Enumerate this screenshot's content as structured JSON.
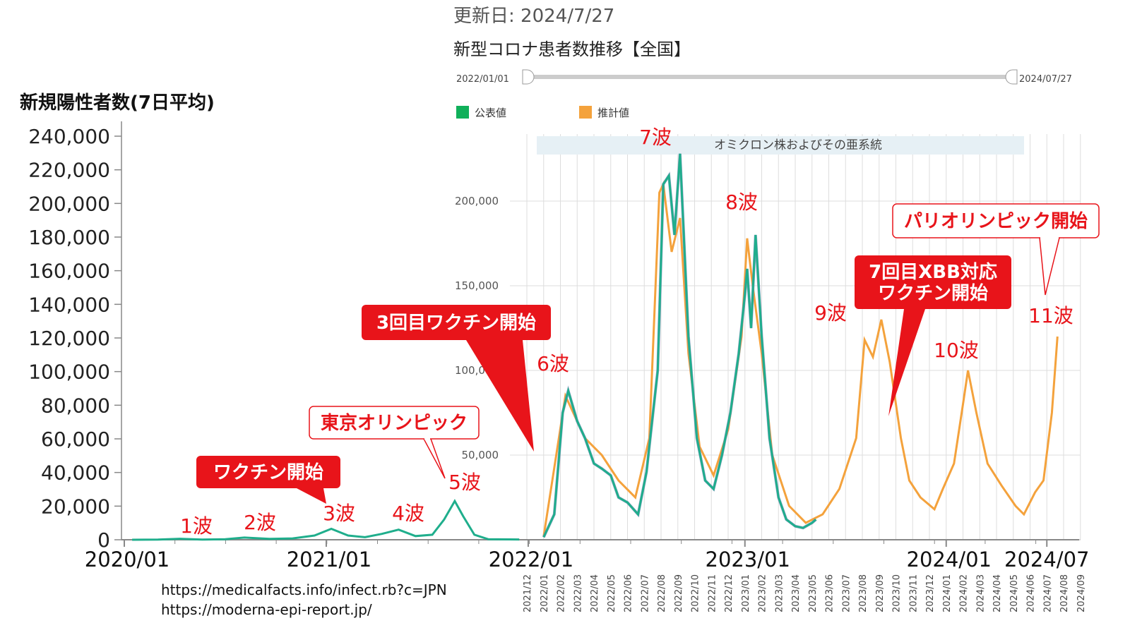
{
  "header": {
    "updated": "更新日: 2024/7/27",
    "title": "新型コロナ患者数推移【全国】"
  },
  "slider": {
    "start_label": "2022/01/01",
    "end_label": "2024/07/27"
  },
  "legend": [
    {
      "label": "公表値",
      "color": "#10b05a"
    },
    {
      "label": "推計値",
      "color": "#f4a23c"
    }
  ],
  "omicron_label": "オミクロン株およびその亜系統",
  "sources": [
    "https://medicalfacts.info/infect.rb?c=JPN",
    "https://moderna-epi-report.jp/"
  ],
  "waves": [
    {
      "label": "1波",
      "date": "2020-04"
    },
    {
      "label": "2波",
      "date": "2020-08"
    },
    {
      "label": "3波",
      "date": "2021-01"
    },
    {
      "label": "4波",
      "date": "2021-05"
    },
    {
      "label": "5波",
      "date": "2021-08"
    },
    {
      "label": "6波",
      "date": "2022-02"
    },
    {
      "label": "7波",
      "date": "2022-08"
    },
    {
      "label": "8波",
      "date": "2023-01"
    },
    {
      "label": "9波",
      "date": "2023-09"
    },
    {
      "label": "10波",
      "date": "2024-02"
    },
    {
      "label": "11波",
      "date": "2024-07"
    }
  ],
  "callouts": [
    {
      "label": "ワクチン開始",
      "style": "filled"
    },
    {
      "label": "東京オリンピック",
      "style": "outline"
    },
    {
      "label": "3回目ワクチン開始",
      "style": "filled"
    },
    {
      "label": "7回目XBB対応\nワクチン開始",
      "style": "filled"
    },
    {
      "label": "パリオリンピック開始",
      "style": "outline"
    }
  ],
  "colors": {
    "teal": "#1fae8c",
    "orange": "#f4a23c",
    "red": "#e8141a",
    "axis": "#888888",
    "grid": "#dddddd",
    "omicron_band": "#e6f0f5"
  },
  "chart_data": [
    {
      "type": "line",
      "title": "新規陽性者数(7日平均)",
      "xlabel": "",
      "ylabel": "新規陽性者数(7日平均)",
      "ylim": [
        0,
        240000
      ],
      "y_ticks": [
        "0",
        "20,000",
        "40,000",
        "60,000",
        "80,000",
        "100,000",
        "120,000",
        "140,000",
        "160,000",
        "180,000",
        "200,000",
        "220,000",
        "240,000"
      ],
      "x_ticks": [
        "2020/01",
        "2021/01",
        "2022/01",
        "2023/01",
        "2024/01",
        "2024/07"
      ],
      "series": [
        {
          "name": "",
          "x": [
            "2020-01-15",
            "2020-03-01",
            "2020-04-10",
            "2020-05-20",
            "2020-07-01",
            "2020-08-05",
            "2020-09-20",
            "2020-11-01",
            "2020-12-10",
            "2021-01-10",
            "2021-02-10",
            "2021-03-10",
            "2021-04-10",
            "2021-05-10",
            "2021-06-10",
            "2021-07-10",
            "2021-08-01",
            "2021-08-20",
            "2021-09-05",
            "2021-09-25",
            "2021-10-20",
            "2021-12-15"
          ],
          "values": [
            0,
            100,
            600,
            100,
            300,
            1300,
            500,
            800,
            2500,
            6500,
            2500,
            1500,
            3500,
            6000,
            2200,
            3000,
            12000,
            23000,
            14000,
            3000,
            300,
            150
          ]
        }
      ]
    },
    {
      "type": "line",
      "title": "",
      "ylim": [
        0,
        230000
      ],
      "y_ticks": [
        "50,000",
        "100,000",
        "150,000",
        "200,000"
      ],
      "x_ticks": [
        "2021/12",
        "2022/01",
        "2022/02",
        "2022/03",
        "2022/04",
        "2022/05",
        "2022/06",
        "2022/07",
        "2022/08",
        "2022/09",
        "2022/10",
        "2022/11",
        "2022/12",
        "2023/01",
        "2023/02",
        "2023/03",
        "2023/04",
        "2023/05",
        "2023/06",
        "2023/07",
        "2023/08",
        "2023/09",
        "2023/10",
        "2023/11",
        "2023/12",
        "2024/01",
        "2024/02",
        "2024/03",
        "2024/04",
        "2024/05",
        "2024/06",
        "2024/07",
        "2024/08",
        "2024/09"
      ],
      "series": [
        {
          "name": "公表値",
          "x": [
            "2022-01-01",
            "2022-01-20",
            "2022-02-05",
            "2022-02-15",
            "2022-03-01",
            "2022-03-15",
            "2022-04-01",
            "2022-04-15",
            "2022-05-01",
            "2022-05-15",
            "2022-06-01",
            "2022-06-20",
            "2022-07-05",
            "2022-07-25",
            "2022-08-05",
            "2022-08-15",
            "2022-08-25",
            "2022-09-05",
            "2022-09-20",
            "2022-10-05",
            "2022-10-20",
            "2022-11-05",
            "2022-11-20",
            "2022-12-05",
            "2022-12-20",
            "2023-01-01",
            "2023-01-05",
            "2023-01-12",
            "2023-01-20",
            "2023-02-01",
            "2023-02-15",
            "2023-03-01",
            "2023-03-15",
            "2023-04-01",
            "2023-04-15",
            "2023-05-01",
            "2023-05-08"
          ],
          "values": [
            1500,
            15000,
            75000,
            88000,
            70000,
            60000,
            45000,
            42000,
            38000,
            25000,
            22000,
            15000,
            40000,
            100000,
            210000,
            215000,
            180000,
            228000,
            120000,
            60000,
            35000,
            30000,
            50000,
            75000,
            110000,
            145000,
            160000,
            125000,
            180000,
            120000,
            60000,
            25000,
            12000,
            8000,
            7000,
            10000,
            12000
          ]
        },
        {
          "name": "推計値",
          "x": [
            "2022-01-01",
            "2022-02-10",
            "2022-03-15",
            "2022-04-15",
            "2022-05-15",
            "2022-06-15",
            "2022-07-10",
            "2022-07-28",
            "2022-08-05",
            "2022-08-20",
            "2022-09-05",
            "2022-09-20",
            "2022-10-10",
            "2022-11-05",
            "2022-12-01",
            "2022-12-25",
            "2023-01-05",
            "2023-01-15",
            "2023-02-01",
            "2023-02-20",
            "2023-03-20",
            "2023-04-20",
            "2023-05-20",
            "2023-06-20",
            "2023-07-20",
            "2023-08-05",
            "2023-08-20",
            "2023-09-05",
            "2023-09-20",
            "2023-10-10",
            "2023-10-25",
            "2023-11-15",
            "2023-12-10",
            "2023-12-25",
            "2024-01-15",
            "2024-02-01",
            "2024-02-10",
            "2024-02-25",
            "2024-03-15",
            "2024-04-10",
            "2024-05-05",
            "2024-05-20",
            "2024-06-10",
            "2024-06-25",
            "2024-07-10",
            "2024-07-20"
          ],
          "values": [
            2000,
            85000,
            60000,
            50000,
            35000,
            25000,
            60000,
            205000,
            210000,
            170000,
            190000,
            110000,
            55000,
            38000,
            65000,
            120000,
            178000,
            150000,
            110000,
            50000,
            20000,
            10000,
            15000,
            30000,
            60000,
            118000,
            108000,
            130000,
            105000,
            60000,
            35000,
            25000,
            18000,
            30000,
            45000,
            80000,
            100000,
            75000,
            45000,
            32000,
            20000,
            15000,
            28000,
            35000,
            75000,
            120000
          ]
        }
      ]
    }
  ]
}
